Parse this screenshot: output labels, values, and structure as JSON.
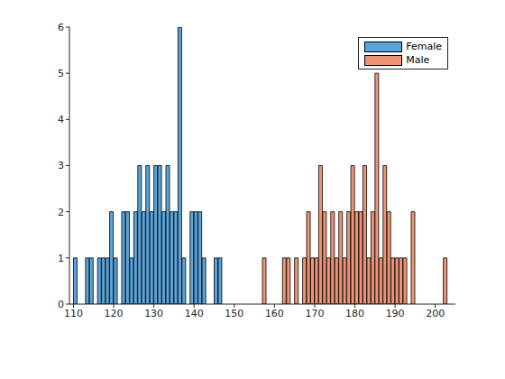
{
  "chart_data": {
    "type": "histogram",
    "bins": [
      110,
      111,
      112,
      113,
      114,
      115,
      116,
      117,
      118,
      119,
      120,
      121,
      122,
      123,
      124,
      125,
      126,
      127,
      128,
      129,
      130,
      131,
      132,
      133,
      134,
      135,
      136,
      137,
      138,
      139,
      140,
      141,
      142,
      143,
      144,
      145,
      146,
      147,
      148,
      149,
      150,
      151,
      152,
      153,
      154,
      155,
      156,
      157,
      158,
      159,
      160,
      161,
      162,
      163,
      164,
      165,
      166,
      167,
      168,
      169,
      170,
      171,
      172,
      173,
      174,
      175,
      176,
      177,
      178,
      179,
      180,
      181,
      182,
      183,
      184,
      185,
      186,
      187,
      188,
      189,
      190,
      191,
      192,
      193,
      194,
      195,
      196,
      197,
      198,
      199,
      200,
      201,
      202,
      203
    ],
    "series": [
      {
        "name": "Female",
        "color": "#5ba4db",
        "values": [
          1,
          0,
          0,
          1,
          1,
          0,
          1,
          1,
          1,
          2,
          1,
          0,
          2,
          2,
          1,
          2,
          3,
          2,
          3,
          2,
          3,
          3,
          2,
          3,
          2,
          2,
          6,
          1,
          0,
          2,
          2,
          2,
          1,
          0,
          0,
          1,
          1,
          0,
          0,
          0,
          0,
          0,
          0,
          0,
          0,
          0,
          0,
          0,
          0,
          0,
          0,
          0,
          0,
          0,
          0,
          0,
          0,
          0,
          0,
          0,
          0,
          0,
          0,
          0,
          0,
          0,
          0,
          0,
          0,
          0,
          0,
          0,
          0,
          0,
          0,
          0,
          0,
          0,
          0,
          0,
          0,
          0,
          0,
          0,
          0,
          0,
          0,
          0,
          0,
          0,
          0,
          0,
          0
        ]
      },
      {
        "name": "Male",
        "color": "#ee9475",
        "values": [
          0,
          0,
          0,
          0,
          0,
          0,
          0,
          0,
          0,
          0,
          0,
          0,
          0,
          0,
          0,
          0,
          0,
          0,
          0,
          0,
          0,
          0,
          0,
          0,
          0,
          0,
          0,
          0,
          0,
          0,
          0,
          0,
          0,
          0,
          0,
          0,
          0,
          0,
          0,
          0,
          0,
          0,
          0,
          0,
          0,
          0,
          0,
          1,
          0,
          0,
          0,
          0,
          1,
          1,
          0,
          1,
          0,
          1,
          2,
          1,
          1,
          3,
          2,
          1,
          2,
          1,
          2,
          1,
          2,
          3,
          2,
          2,
          3,
          1,
          2,
          5,
          1,
          3,
          2,
          1,
          1,
          1,
          1,
          0,
          2,
          0,
          0,
          0,
          0,
          0,
          0,
          0,
          1
        ]
      }
    ],
    "xlim": [
      109,
      205
    ],
    "xticks": [
      110,
      120,
      130,
      140,
      150,
      160,
      170,
      180,
      190,
      200
    ],
    "ylim": [
      0,
      6
    ],
    "yticks": [
      0,
      1,
      2,
      3,
      4,
      5,
      6
    ],
    "legend": "upper right"
  }
}
